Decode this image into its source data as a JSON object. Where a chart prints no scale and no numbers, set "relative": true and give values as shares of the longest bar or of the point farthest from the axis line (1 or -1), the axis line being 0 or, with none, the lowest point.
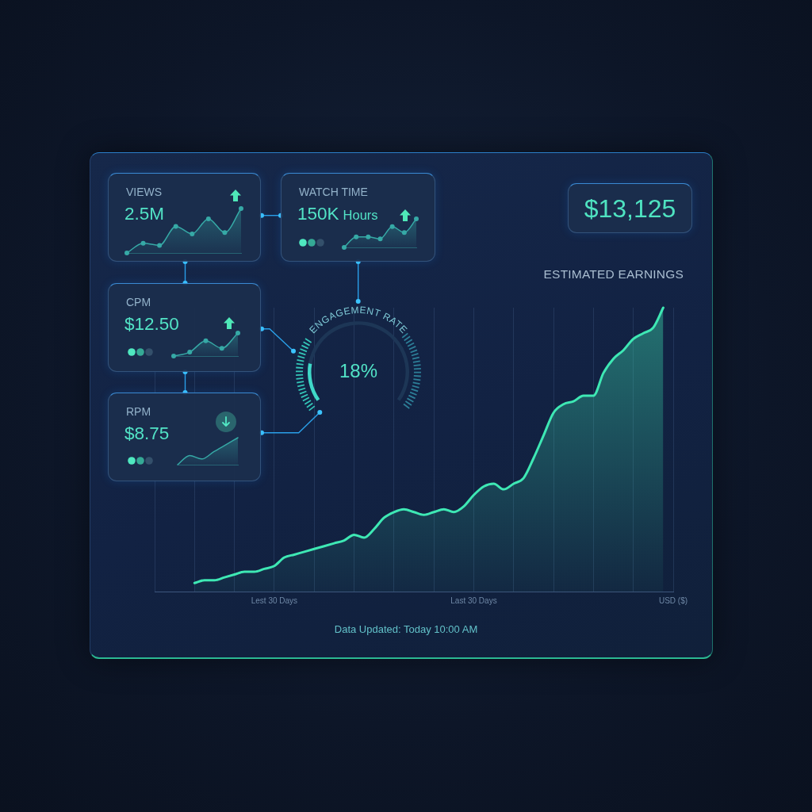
{
  "chart_data": [
    {
      "type": "area",
      "relative": true,
      "title": "VIEWS",
      "subtitle": "2.5M",
      "categories": [
        null,
        null,
        null,
        null,
        null,
        null,
        null,
        null
      ],
      "values": [
        0,
        0.22,
        0.17,
        0.6,
        0.43,
        0.77,
        0.46,
        1
      ],
      "color": "#36a9a6",
      "marker": "circle"
    },
    {
      "type": "area",
      "relative": true,
      "title": "WATCH TIME",
      "subtitle": "150K Hours",
      "categories": [
        null,
        null,
        null,
        null,
        null,
        null,
        null
      ],
      "values": [
        0,
        0.37,
        0.37,
        0.3,
        0.73,
        0.52,
        1
      ],
      "color": "#36a9a6",
      "marker": "circle"
    },
    {
      "type": "area",
      "relative": true,
      "title": "CPM",
      "subtitle": "$12.50",
      "categories": [
        null,
        null,
        null,
        null,
        null
      ],
      "values": [
        0,
        0.17,
        0.66,
        0.34,
        1
      ],
      "color": "#36a9a6",
      "marker": "circle"
    },
    {
      "type": "donut",
      "title": "ENGAGEMENT RATE",
      "categories": [
        null,
        null
      ],
      "values": [
        18,
        82
      ],
      "colors": [
        "#3fd8c8",
        "#1d3656"
      ],
      "annotations": [
        "18%"
      ]
    },
    {
      "type": "area",
      "relative": true,
      "title": "RPM",
      "subtitle": "$8.75",
      "categories": [
        null,
        null,
        null,
        null,
        null,
        null
      ],
      "values": [
        0,
        0.34,
        0.21,
        0.48,
        0.74,
        1
      ],
      "color": "#36a9a6"
    },
    {
      "type": "area",
      "relative": true,
      "title": "ESTIMATED EARNINGS",
      "annotations": [
        "$13,125",
        "Data Updated: Today 10:00 AM"
      ],
      "categories": [
        null,
        null,
        null,
        null,
        null,
        null,
        null,
        null,
        null,
        null,
        null,
        null,
        "Lest 30 Days",
        null,
        null,
        null,
        null,
        null,
        null,
        null,
        null,
        null,
        null,
        null,
        null,
        null,
        null,
        null,
        null,
        null,
        null,
        null,
        "Last 30 Days",
        null,
        null,
        null,
        null,
        null,
        null,
        null,
        null,
        null,
        null,
        null,
        null,
        null,
        null,
        null,
        null,
        null,
        null,
        null,
        "USD ($)"
      ],
      "values": [
        null,
        null,
        null,
        null,
        0.03,
        0.04,
        0.04,
        0.05,
        0.06,
        0.07,
        0.07,
        0.08,
        0.09,
        0.12,
        0.13,
        0.14,
        0.15,
        0.16,
        0.17,
        0.18,
        0.2,
        0.19,
        0.22,
        0.26,
        0.28,
        0.29,
        0.28,
        0.27,
        0.28,
        0.29,
        0.28,
        0.3,
        0.34,
        0.37,
        0.38,
        0.36,
        0.38,
        0.4,
        0.47,
        0.55,
        0.63,
        0.66,
        0.67,
        0.69,
        0.69,
        0.77,
        0.82,
        0.85,
        0.89,
        0.91,
        0.93,
        1,
        null
      ],
      "color": "#3ee8b4",
      "grid": "x"
    }
  ]
}
